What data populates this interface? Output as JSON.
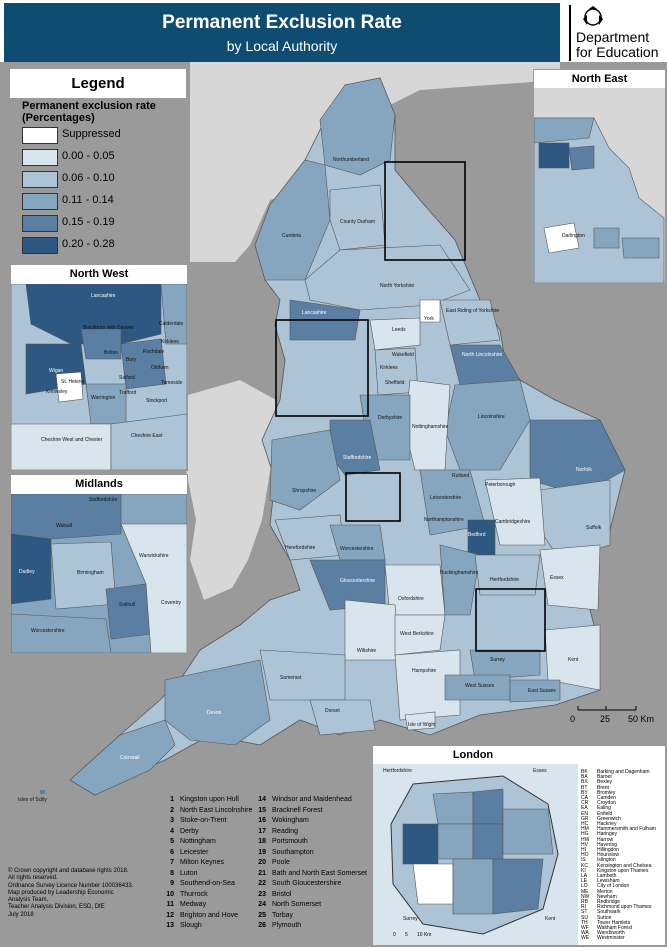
{
  "header": {
    "title": "Permanent Exclusion Rate",
    "subtitle": "by Local Authority",
    "department": "Department for Education"
  },
  "colors": {
    "title_bar": "#0e4c72",
    "sea": "#9a9a9a",
    "class_suppressed": "#ffffff",
    "class_1": "#d9e5ed",
    "class_2": "#adc4d6",
    "class_3": "#86a6bf",
    "class_4": "#5a7fa3",
    "class_5": "#2c5882"
  },
  "legend": {
    "title": "Legend",
    "subtitle": "Permanent exclusion rate (Percentages)",
    "classes": [
      {
        "label": "Suppressed",
        "color": "#ffffff"
      },
      {
        "label": "0.00 - 0.05",
        "color": "#d9e5ed"
      },
      {
        "label": "0.06 - 0.10",
        "color": "#adc4d6"
      },
      {
        "label": "0.11 - 0.14",
        "color": "#86a6bf"
      },
      {
        "label": "0.15 - 0.19",
        "color": "#5a7fa3"
      },
      {
        "label": "0.20 - 0.28",
        "color": "#2c5882"
      }
    ]
  },
  "insets": {
    "north_east": {
      "title": "North East",
      "labels": [
        "Darlington"
      ]
    },
    "north_west": {
      "title": "North West",
      "labels": [
        "Lancashire",
        "Blackburn with Darwen",
        "Bolton",
        "Rochdale",
        "Bury",
        "Oldham",
        "Wigan",
        "Salford",
        "Tameside",
        "St. Helens",
        "Knowsley",
        "Warrington",
        "Trafford",
        "Stockport",
        "Cheshire West and Chester",
        "Cheshire East",
        "Calderdale",
        "Kirklees"
      ]
    },
    "midlands": {
      "title": "Midlands",
      "labels": [
        "Staffordshire",
        "Walsall",
        "Dudley",
        "Birmingham",
        "Solihull",
        "Warwickshire",
        "Coventry",
        "Worcestershire"
      ]
    },
    "london": {
      "title": "London",
      "labels": [
        "Hertfordshire",
        "Essex",
        "Kent",
        "Surrey"
      ],
      "key": [
        {
          "code": "BK",
          "name": "Barking and Dagenham"
        },
        {
          "code": "BA",
          "name": "Barnet"
        },
        {
          "code": "BX",
          "name": "Bexley"
        },
        {
          "code": "BT",
          "name": "Brent"
        },
        {
          "code": "BY",
          "name": "Bromley"
        },
        {
          "code": "CA",
          "name": "Camden"
        },
        {
          "code": "CR",
          "name": "Croydon"
        },
        {
          "code": "EA",
          "name": "Ealing"
        },
        {
          "code": "EN",
          "name": "Enfield"
        },
        {
          "code": "GR",
          "name": "Greenwich"
        },
        {
          "code": "HC",
          "name": "Hackney"
        },
        {
          "code": "HM",
          "name": "Hammersmith and Fulham"
        },
        {
          "code": "HG",
          "name": "Haringey"
        },
        {
          "code": "HW",
          "name": "Harrow"
        },
        {
          "code": "HV",
          "name": "Havering"
        },
        {
          "code": "HI",
          "name": "Hillingdon"
        },
        {
          "code": "HO",
          "name": "Hounslow"
        },
        {
          "code": "IS",
          "name": "Islington"
        },
        {
          "code": "KC",
          "name": "Kensington and Chelsea"
        },
        {
          "code": "KI",
          "name": "Kingston upon Thames"
        },
        {
          "code": "LA",
          "name": "Lambeth"
        },
        {
          "code": "LE",
          "name": "Lewisham"
        },
        {
          "code": "LO",
          "name": "City of London"
        },
        {
          "code": "ME",
          "name": "Merton"
        },
        {
          "code": "NW",
          "name": "Newham"
        },
        {
          "code": "RB",
          "name": "Redbridge"
        },
        {
          "code": "RI",
          "name": "Richmond upon Thames"
        },
        {
          "code": "ST",
          "name": "Southwark"
        },
        {
          "code": "SU",
          "name": "Sutton"
        },
        {
          "code": "TH",
          "name": "Tower Hamlets"
        },
        {
          "code": "WF",
          "name": "Waltham Forest"
        },
        {
          "code": "WA",
          "name": "Wandsworth"
        },
        {
          "code": "WE",
          "name": "Westminster"
        }
      ],
      "scale": [
        "0",
        "5",
        "10 Km"
      ]
    }
  },
  "main_map": {
    "labels": [
      "Northumberland",
      "Cumbria",
      "County Durham",
      "North Yorkshire",
      "Lancashire",
      "York",
      "East Riding of Yorkshire",
      "Leeds",
      "Wakefield",
      "Kirklees",
      "North Lincolnshire",
      "Sheffield",
      "Derbyshire",
      "Nottinghamshire",
      "Lincolnshire",
      "Staffordshire",
      "Shropshire",
      "Rutland",
      "Peterborough",
      "Norfolk",
      "Northamptonshire",
      "Cambridgeshire",
      "Suffolk",
      "Herefordshire",
      "Worcestershire",
      "Bedford",
      "Buckinghamshire",
      "Hertfordshire",
      "Essex",
      "Gloucestershire",
      "Oxfordshire",
      "West Berkshire",
      "Surrey",
      "Kent",
      "Wiltshire",
      "Hampshire",
      "Somerset",
      "West Sussex",
      "East Sussex",
      "Devon",
      "Dorset",
      "Cornwall",
      "Isle of Wight",
      "Isles of Scilly",
      "Leicestershire"
    ],
    "scale_bar": [
      "0",
      "25",
      "50 Km"
    ]
  },
  "numbered_areas": [
    {
      "n": "1",
      "name": "Kingston upon Hull"
    },
    {
      "n": "2",
      "name": "North East Lincolnshire"
    },
    {
      "n": "3",
      "name": "Stoke-on-Trent"
    },
    {
      "n": "4",
      "name": "Derby"
    },
    {
      "n": "5",
      "name": "Nottingham"
    },
    {
      "n": "6",
      "name": "Leicester"
    },
    {
      "n": "7",
      "name": "Milton Keynes"
    },
    {
      "n": "8",
      "name": "Luton"
    },
    {
      "n": "9",
      "name": "Southend-on-Sea"
    },
    {
      "n": "10",
      "name": "Thurrock"
    },
    {
      "n": "11",
      "name": "Medway"
    },
    {
      "n": "12",
      "name": "Brighton and Hove"
    },
    {
      "n": "13",
      "name": "Slough"
    },
    {
      "n": "14",
      "name": "Windsor and Maidenhead"
    },
    {
      "n": "15",
      "name": "Bracknell Forest"
    },
    {
      "n": "16",
      "name": "Wokingham"
    },
    {
      "n": "17",
      "name": "Reading"
    },
    {
      "n": "18",
      "name": "Portsmouth"
    },
    {
      "n": "19",
      "name": "Southampton"
    },
    {
      "n": "20",
      "name": "Poole"
    },
    {
      "n": "21",
      "name": "Bath and North East Somerset"
    },
    {
      "n": "22",
      "name": "South Gloucestershire"
    },
    {
      "n": "23",
      "name": "Bristol"
    },
    {
      "n": "24",
      "name": "North Somerset"
    },
    {
      "n": "25",
      "name": "Torbay"
    },
    {
      "n": "26",
      "name": "Plymouth"
    }
  ],
  "credits": [
    "© Crown copyright and database rights 2018.",
    "All rights reserved.",
    "Ordnance Survey Licence Number 100036433.",
    "Map produced by Leadership Economic",
    "Analysis Team,",
    "Teacher Analysis Division, ESD, DfE",
    "July 2018"
  ]
}
